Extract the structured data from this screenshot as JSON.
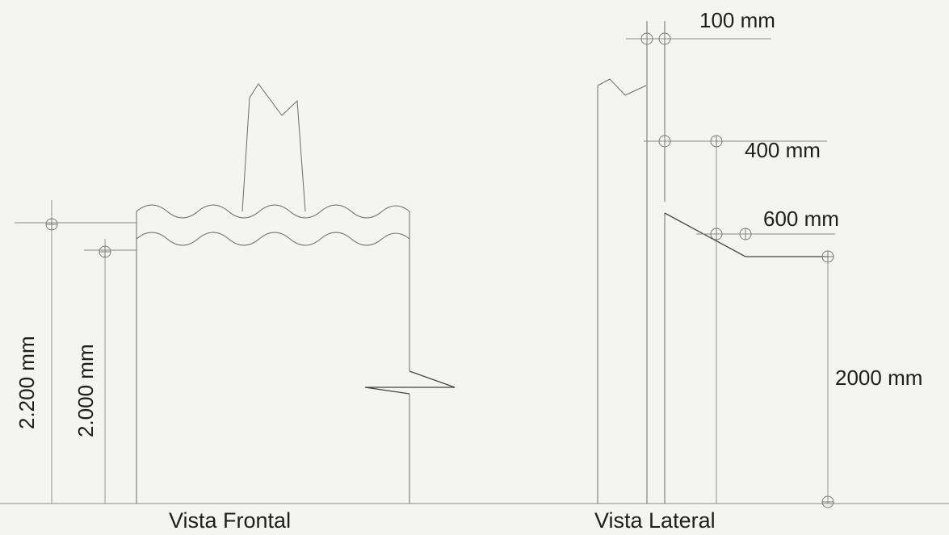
{
  "front_view": {
    "caption": "Vista Frontal",
    "dim_outer": "2.200 mm",
    "dim_inner": "2.000 mm"
  },
  "side_view": {
    "caption": "Vista Lateral",
    "dim_top": "100 mm",
    "dim_mid": "400 mm",
    "dim_low": "600 mm",
    "dim_height": "2000 mm"
  },
  "colors": {
    "background": "#f4f4f2",
    "line": "#6b6b6b",
    "text": "#1e1e1e"
  }
}
